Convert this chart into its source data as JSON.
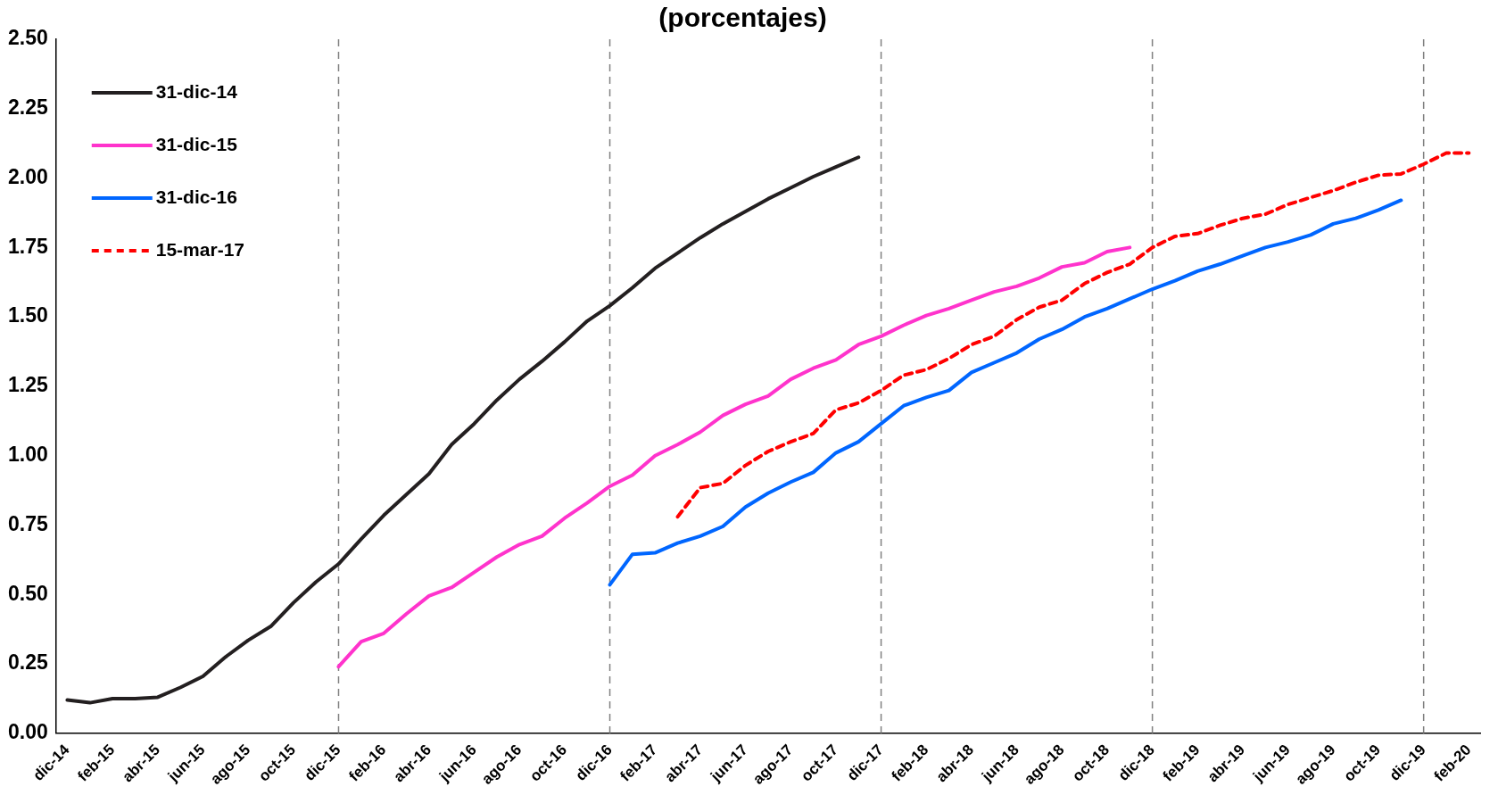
{
  "chart_data": {
    "type": "line",
    "title": "(porcentajes)",
    "categories": [
      "dic-14",
      null,
      "feb-15",
      null,
      "abr-15",
      null,
      "jun-15",
      null,
      "ago-15",
      null,
      "oct-15",
      null,
      "dic-15",
      null,
      "feb-16",
      null,
      "abr-16",
      null,
      "jun-16",
      null,
      "ago-16",
      null,
      "oct-16",
      null,
      "dic-16",
      null,
      "feb-17",
      null,
      "abr-17",
      null,
      "jun-17",
      null,
      "ago-17",
      null,
      "oct-17",
      null,
      "dic-17",
      null,
      "feb-18",
      null,
      "abr-18",
      null,
      "jun-18",
      null,
      "ago-18",
      null,
      "oct-18",
      null,
      "dic-18",
      null,
      "feb-19",
      null,
      "abr-19",
      null,
      "jun-19",
      null,
      "ago-19",
      null,
      "oct-19",
      null,
      "dic-19",
      null,
      "feb-20"
    ],
    "series": [
      {
        "name": "31-dic-14",
        "color": "#231f20",
        "values": [
          0.12,
          0.11,
          0.125,
          0.125,
          0.13,
          0.165,
          0.205,
          0.275,
          0.335,
          0.385,
          0.47,
          0.545,
          0.61,
          0.7,
          0.785,
          0.86,
          0.935,
          1.04,
          1.115,
          1.2,
          1.275,
          1.34,
          1.41,
          1.485,
          1.54,
          1.605,
          1.675,
          1.73,
          1.785,
          1.835,
          1.88,
          1.925,
          1.965,
          2.005,
          2.04,
          2.075,
          null,
          null,
          null,
          null,
          null,
          null,
          null,
          null,
          null,
          null,
          null,
          null,
          null,
          null,
          null,
          null,
          null,
          null,
          null,
          null,
          null,
          null,
          null,
          null,
          null,
          null,
          null
        ]
      },
      {
        "name": "31-dic-15",
        "color": "#ff33cc",
        "values": [
          null,
          null,
          null,
          null,
          null,
          null,
          null,
          null,
          null,
          null,
          null,
          null,
          0.24,
          0.33,
          0.36,
          0.43,
          0.495,
          0.525,
          0.58,
          0.635,
          0.68,
          0.71,
          0.775,
          0.83,
          0.89,
          0.93,
          1.0,
          1.04,
          1.085,
          1.145,
          1.185,
          1.215,
          1.275,
          1.315,
          1.345,
          1.4,
          1.43,
          1.47,
          1.505,
          1.53,
          1.56,
          1.59,
          1.61,
          1.64,
          1.68,
          1.695,
          1.735,
          1.75,
          null,
          null,
          null,
          null,
          null,
          null,
          null,
          null,
          null,
          null,
          null,
          null,
          null,
          null,
          null
        ]
      },
      {
        "name": "31-dic-16",
        "color": "#0066ff",
        "values": [
          null,
          null,
          null,
          null,
          null,
          null,
          null,
          null,
          null,
          null,
          null,
          null,
          null,
          null,
          null,
          null,
          null,
          null,
          null,
          null,
          null,
          null,
          null,
          null,
          0.535,
          0.645,
          0.65,
          0.685,
          0.71,
          0.745,
          0.815,
          0.865,
          0.905,
          0.94,
          1.01,
          1.05,
          1.115,
          1.18,
          1.21,
          1.235,
          1.3,
          1.335,
          1.37,
          1.42,
          1.455,
          1.5,
          1.53,
          1.565,
          1.6,
          1.63,
          1.665,
          1.69,
          1.72,
          1.75,
          1.77,
          1.795,
          1.835,
          1.855,
          1.885,
          1.92,
          null,
          null,
          null
        ]
      },
      {
        "name": "15-mar-17",
        "color": "#ff0000",
        "line_style": "dashed",
        "values": [
          null,
          null,
          null,
          null,
          null,
          null,
          null,
          null,
          null,
          null,
          null,
          null,
          null,
          null,
          null,
          null,
          null,
          null,
          null,
          null,
          null,
          null,
          null,
          null,
          null,
          null,
          null,
          0.78,
          0.885,
          0.9,
          0.965,
          1.015,
          1.05,
          1.08,
          1.165,
          1.19,
          1.235,
          1.29,
          1.31,
          1.35,
          1.4,
          1.43,
          1.49,
          1.535,
          1.56,
          1.62,
          1.66,
          1.69,
          1.75,
          1.79,
          1.8,
          1.83,
          1.855,
          1.87,
          1.905,
          1.93,
          1.955,
          1.985,
          2.01,
          2.015,
          2.05,
          2.09,
          2.09
        ]
      }
    ],
    "ylim": [
      0,
      2.5
    ],
    "yticks": [
      {
        "value": 0,
        "label": "0.00"
      },
      {
        "value": 0.25,
        "label": "0.25"
      },
      {
        "value": 0.5,
        "label": "0.50"
      },
      {
        "value": 0.75,
        "label": "0.75"
      },
      {
        "value": 1,
        "label": "1.00"
      },
      {
        "value": 1.25,
        "label": "1.25"
      },
      {
        "value": 1.5,
        "label": "1.50"
      },
      {
        "value": 1.75,
        "label": "1.75"
      },
      {
        "value": 2,
        "label": "2.00"
      },
      {
        "value": 2.25,
        "label": "2.25"
      },
      {
        "value": 2.5,
        "label": "2.50"
      }
    ],
    "ref_lines": [
      {
        "axis": "x",
        "value": "dic-15",
        "line_style": "dashed",
        "color": "#808080"
      },
      {
        "axis": "x",
        "value": "dic-16",
        "line_style": "dashed",
        "color": "#808080"
      },
      {
        "axis": "x",
        "value": "dic-17",
        "line_style": "dashed",
        "color": "#808080"
      },
      {
        "axis": "x",
        "value": "dic-18",
        "line_style": "dashed",
        "color": "#808080"
      },
      {
        "axis": "x",
        "value": "dic-19",
        "line_style": "dashed",
        "color": "#808080"
      }
    ],
    "legend": "top left",
    "grid": false,
    "marker": "none",
    "line_style": "solid"
  }
}
